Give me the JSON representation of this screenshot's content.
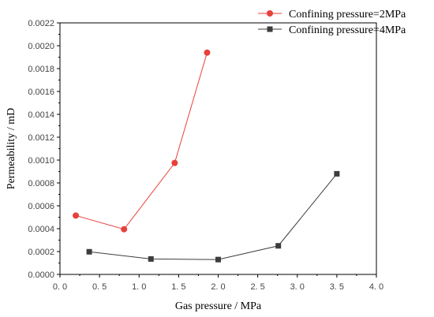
{
  "chart_data": {
    "type": "line",
    "title": "",
    "xlabel": "Gas pressure / MPa",
    "ylabel": "Permeability / mD",
    "xlim": [
      0.0,
      4.0
    ],
    "ylim": [
      0.0,
      0.0022
    ],
    "x_ticks": [
      0.0,
      0.5,
      1.0,
      1.5,
      2.0,
      2.5,
      3.0,
      3.5,
      4.0
    ],
    "x_tick_labels": [
      "0. 0",
      "0. 5",
      "1. 0",
      "1. 5",
      "2. 0",
      "2. 5",
      "3. 0",
      "3. 5",
      "4. 0"
    ],
    "y_ticks": [
      0.0,
      0.0002,
      0.0004,
      0.0006,
      0.0008,
      0.001,
      0.0012,
      0.0014,
      0.0016,
      0.0018,
      0.002,
      0.0022
    ],
    "y_tick_labels": [
      "0.0000",
      "0.0002",
      "0.0004",
      "0.0006",
      "0.0008",
      "0.0010",
      "0.0012",
      "0.0014",
      "0.0016",
      "0.0018",
      "0.0020",
      "0.0022"
    ],
    "grid": false,
    "legend_position": "top-right",
    "series": [
      {
        "name": "Confining pressure=2MPa",
        "color": "#e8403a",
        "marker": "circle",
        "x": [
          0.2,
          0.81,
          1.45,
          1.86
        ],
        "y": [
          0.000515,
          0.000395,
          0.000975,
          0.00194
        ]
      },
      {
        "name": "Confining pressure=4MPa",
        "color": "#3d3d3d",
        "marker": "square",
        "x": [
          0.37,
          1.15,
          2.0,
          2.76,
          3.5
        ],
        "y": [
          0.000198,
          0.000135,
          0.00013,
          0.00025,
          0.00088
        ]
      }
    ]
  }
}
